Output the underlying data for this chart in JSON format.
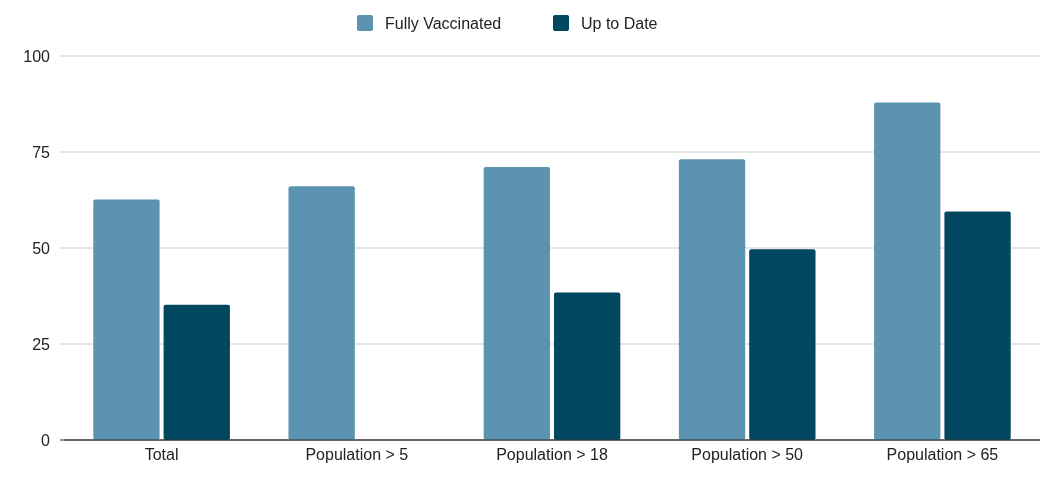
{
  "chart_data": {
    "type": "bar",
    "categories": [
      "Total",
      "Population > 5",
      "Population > 18",
      "Population > 50",
      "Population > 65"
    ],
    "series": [
      {
        "name": "Fully Vaccinated",
        "color": "#5b93b0",
        "values": [
          62.6,
          66.1,
          71.1,
          73.1,
          87.9
        ]
      },
      {
        "name": "Up to Date",
        "color": "#00475f",
        "values": [
          35.2,
          null,
          38.4,
          49.7,
          59.5
        ]
      }
    ],
    "ylim": [
      0,
      100
    ],
    "yticks": [
      0,
      25,
      50,
      75,
      100
    ],
    "grid": "y",
    "legend": "top"
  }
}
